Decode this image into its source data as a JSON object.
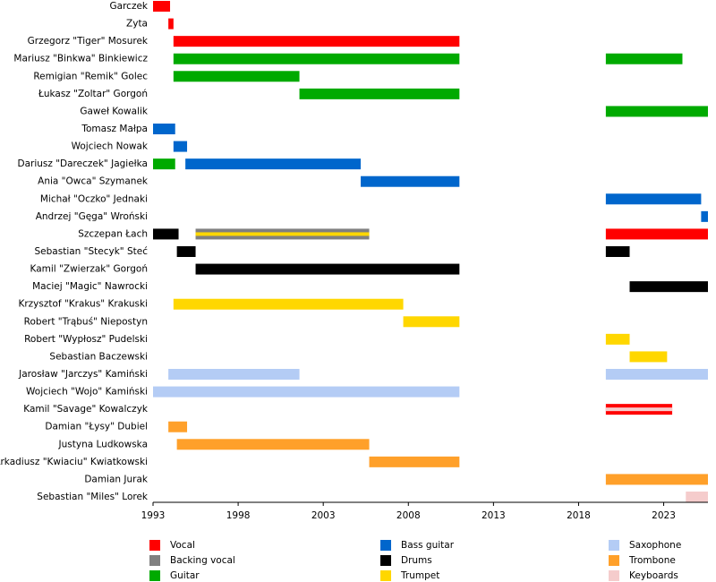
{
  "chart_data": {
    "type": "timeline",
    "roles": [
      {
        "name": "Vocal",
        "color": "#ff0000"
      },
      {
        "name": "Backing vocal",
        "color": "#808080"
      },
      {
        "name": "Guitar",
        "color": "#00aa00"
      },
      {
        "name": "Bass guitar",
        "color": "#0066cc"
      },
      {
        "name": "Drums",
        "color": "#000000"
      },
      {
        "name": "Trumpet",
        "color": "#ffd700"
      },
      {
        "name": "Saxophone",
        "color": "#b4ccf5"
      },
      {
        "name": "Trombone",
        "color": "#ffa02a"
      },
      {
        "name": "Keyboards",
        "color": "#f5cccc"
      }
    ],
    "members": [
      {
        "name": "Garczek",
        "periods": [
          {
            "roles": [
              "Vocal"
            ],
            "start": 1993,
            "end": 1994
          }
        ]
      },
      {
        "name": "Zyta",
        "periods": [
          {
            "roles": [
              "Vocal"
            ],
            "start": 1993.9,
            "end": 1994.2
          }
        ]
      },
      {
        "name": "Grzegorz \"Tiger\" Mosurek",
        "periods": [
          {
            "roles": [
              "Vocal"
            ],
            "start": 1994.2,
            "end": 2011
          }
        ]
      },
      {
        "name": "Mariusz \"Binkwa\" Binkiewicz",
        "periods": [
          {
            "roles": [
              "Guitar"
            ],
            "start": 1994.2,
            "end": 2011
          },
          {
            "roles": [
              "Guitar"
            ],
            "start": 2019.6,
            "end": 2024.1
          }
        ]
      },
      {
        "name": "Remigian \"Remik\" Golec",
        "periods": [
          {
            "roles": [
              "Guitar"
            ],
            "start": 1994.2,
            "end": 2001.6
          }
        ]
      },
      {
        "name": "Łukasz \"Zoltar\" Gorgoń",
        "periods": [
          {
            "roles": [
              "Guitar"
            ],
            "start": 2001.6,
            "end": 2011
          }
        ]
      },
      {
        "name": "Gaweł Kowalik",
        "periods": [
          {
            "roles": [
              "Guitar"
            ],
            "start": 2019.6,
            "end": 2025.6
          }
        ]
      },
      {
        "name": "Tomasz Małpa",
        "periods": [
          {
            "roles": [
              "Bass guitar"
            ],
            "start": 1993,
            "end": 1994.3
          }
        ]
      },
      {
        "name": "Wojciech Nowak",
        "periods": [
          {
            "roles": [
              "Bass guitar"
            ],
            "start": 1994.2,
            "end": 1995
          }
        ]
      },
      {
        "name": "Dariusz \"Dareczek\" Jagiełka",
        "periods": [
          {
            "roles": [
              "Guitar"
            ],
            "start": 1993,
            "end": 1994.3
          },
          {
            "roles": [
              "Bass guitar"
            ],
            "start": 1994.9,
            "end": 2005.2
          }
        ]
      },
      {
        "name": "Ania \"Owca\" Szymanek",
        "periods": [
          {
            "roles": [
              "Bass guitar"
            ],
            "start": 2005.2,
            "end": 2011
          }
        ]
      },
      {
        "name": "Michał \"Oczko\" Jednaki",
        "periods": [
          {
            "roles": [
              "Bass guitar"
            ],
            "start": 2019.6,
            "end": 2025.2
          }
        ]
      },
      {
        "name": "Andrzej \"Gęga\" Wroński",
        "periods": [
          {
            "roles": [
              "Bass guitar"
            ],
            "start": 2025.2,
            "end": 2025.6
          }
        ]
      },
      {
        "name": "Szczepan Łach",
        "periods": [
          {
            "roles": [
              "Drums"
            ],
            "start": 1993,
            "end": 1994.5
          },
          {
            "roles": [
              "Backing vocal",
              "Trumpet"
            ],
            "start": 1995.5,
            "end": 2005.7
          },
          {
            "roles": [
              "Vocal"
            ],
            "start": 2019.6,
            "end": 2025.6
          }
        ]
      },
      {
        "name": "Sebastian \"Stecyk\" Steć",
        "periods": [
          {
            "roles": [
              "Drums"
            ],
            "start": 1994.4,
            "end": 1995.5
          },
          {
            "roles": [
              "Drums"
            ],
            "start": 2019.6,
            "end": 2021
          }
        ]
      },
      {
        "name": "Kamil \"Zwierzak\" Gorgoń",
        "periods": [
          {
            "roles": [
              "Drums"
            ],
            "start": 1995.5,
            "end": 2011
          }
        ]
      },
      {
        "name": "Maciej \"Magic\" Nawrocki",
        "periods": [
          {
            "roles": [
              "Drums"
            ],
            "start": 2021,
            "end": 2025.6
          }
        ]
      },
      {
        "name": "Krzysztof \"Krakus\" Krakuski",
        "periods": [
          {
            "roles": [
              "Trumpet"
            ],
            "start": 1994.2,
            "end": 2007.7
          }
        ]
      },
      {
        "name": "Robert \"Trąbuś\" Niepostyn",
        "periods": [
          {
            "roles": [
              "Trumpet"
            ],
            "start": 2007.7,
            "end": 2011
          }
        ]
      },
      {
        "name": "Robert \"Wypłosz\" Pudelski",
        "periods": [
          {
            "roles": [
              "Trumpet"
            ],
            "start": 2019.6,
            "end": 2021
          }
        ]
      },
      {
        "name": "Sebastian Baczewski",
        "periods": [
          {
            "roles": [
              "Trumpet"
            ],
            "start": 2021,
            "end": 2023.2
          }
        ]
      },
      {
        "name": "Jarosław \"Jarczys\" Kamiński",
        "periods": [
          {
            "roles": [
              "Saxophone"
            ],
            "start": 1993.9,
            "end": 2001.6
          },
          {
            "roles": [
              "Saxophone"
            ],
            "start": 2019.6,
            "end": 2025.6
          }
        ]
      },
      {
        "name": "Wojciech \"Wojo\" Kamiński",
        "periods": [
          {
            "roles": [
              "Saxophone"
            ],
            "start": 1993,
            "end": 2011
          }
        ]
      },
      {
        "name": "Kamil \"Savage\" Kowalczyk",
        "periods": [
          {
            "roles": [
              "Vocal",
              "Keyboards"
            ],
            "start": 2019.6,
            "end": 2023.5
          }
        ]
      },
      {
        "name": "Damian \"Łysy\" Dubiel",
        "periods": [
          {
            "roles": [
              "Trombone"
            ],
            "start": 1993.9,
            "end": 1995
          }
        ]
      },
      {
        "name": "Justyna Ludkowska",
        "periods": [
          {
            "roles": [
              "Trombone"
            ],
            "start": 1994.4,
            "end": 2005.7
          }
        ]
      },
      {
        "name": "Arkadiusz \"Kwiaciu\" Kwiatkowski",
        "periods": [
          {
            "roles": [
              "Trombone"
            ],
            "start": 2005.7,
            "end": 2011
          }
        ]
      },
      {
        "name": "Damian Jurak",
        "periods": [
          {
            "roles": [
              "Trombone"
            ],
            "start": 2019.6,
            "end": 2025.6
          }
        ]
      },
      {
        "name": "Sebastian \"Miles\" Lorek",
        "periods": [
          {
            "roles": [
              "Keyboards"
            ],
            "start": 2024.3,
            "end": 2025.6
          }
        ]
      }
    ],
    "xlim": [
      1993,
      2025.6
    ],
    "xticks": [
      1993,
      1998,
      2003,
      2008,
      2013,
      2018,
      2023
    ]
  }
}
